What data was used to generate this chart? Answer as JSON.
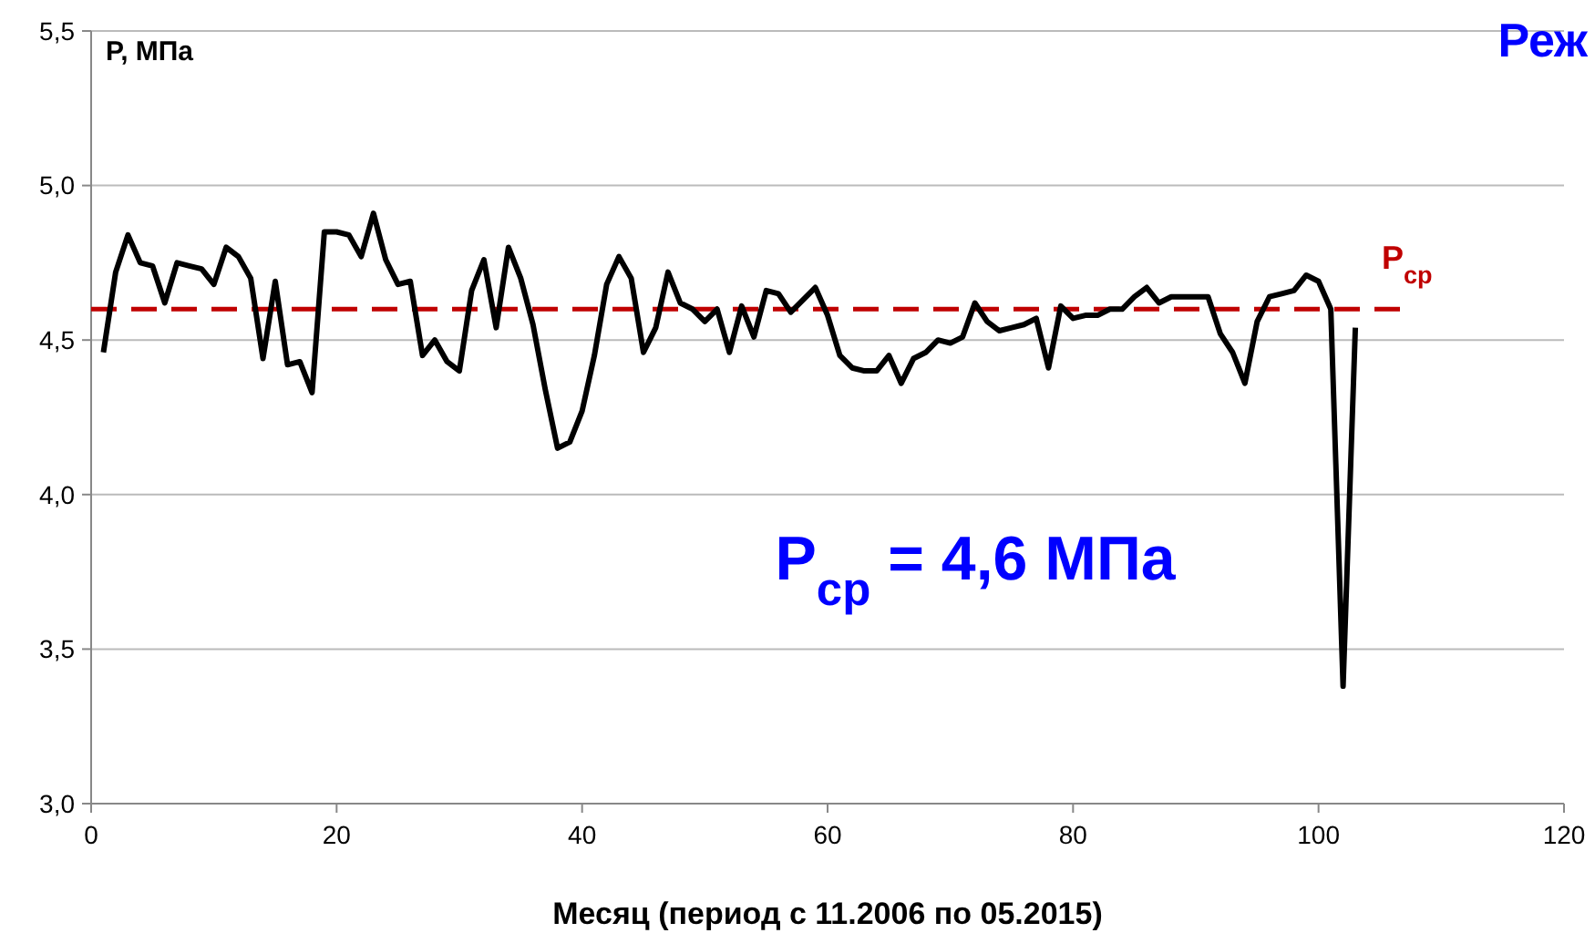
{
  "chart_data": {
    "type": "line",
    "title": "Реж",
    "xlabel": "Месяц (период с 11.2006 по 05.2015)",
    "ylabel": "P, МПа",
    "x": [
      1,
      2,
      3,
      4,
      5,
      6,
      7,
      8,
      9,
      10,
      11,
      12,
      13,
      14,
      15,
      16,
      17,
      18,
      19,
      20,
      21,
      22,
      23,
      24,
      25,
      26,
      27,
      28,
      29,
      30,
      31,
      32,
      33,
      34,
      35,
      36,
      37,
      38,
      39,
      40,
      41,
      42,
      43,
      44,
      45,
      46,
      47,
      48,
      49,
      50,
      51,
      52,
      53,
      54,
      55,
      56,
      57,
      58,
      59,
      60,
      61,
      62,
      63,
      64,
      65,
      66,
      67,
      68,
      69,
      70,
      71,
      72,
      73,
      74,
      75,
      76,
      77,
      78,
      79,
      80,
      81,
      82,
      83,
      84,
      85,
      86,
      87,
      88,
      89,
      90,
      91,
      92,
      93,
      94,
      95,
      96,
      97,
      98,
      99,
      100,
      101,
      102,
      103
    ],
    "series": [
      {
        "color": "#000000",
        "values": [
          4.46,
          4.72,
          4.84,
          4.75,
          4.74,
          4.62,
          4.75,
          4.74,
          4.73,
          4.68,
          4.8,
          4.77,
          4.7,
          4.44,
          4.69,
          4.42,
          4.43,
          4.33,
          4.85,
          4.85,
          4.84,
          4.77,
          4.91,
          4.76,
          4.68,
          4.69,
          4.45,
          4.5,
          4.43,
          4.4,
          4.66,
          4.76,
          4.54,
          4.8,
          4.7,
          4.55,
          4.34,
          4.15,
          4.17,
          4.27,
          4.45,
          4.68,
          4.77,
          4.7,
          4.46,
          4.54,
          4.72,
          4.62,
          4.6,
          4.56,
          4.6,
          4.46,
          4.61,
          4.51,
          4.66,
          4.65,
          4.59,
          4.63,
          4.67,
          4.58,
          4.45,
          4.41,
          4.4,
          4.4,
          4.45,
          4.36,
          4.44,
          4.46,
          4.5,
          4.49,
          4.51,
          4.62,
          4.56,
          4.53,
          4.54,
          4.55,
          4.57,
          4.41,
          4.61,
          4.57,
          4.58,
          4.58,
          4.6,
          4.6,
          4.64,
          4.67,
          4.62,
          4.64,
          4.64,
          4.64,
          4.64,
          4.52,
          4.46,
          4.36,
          4.56,
          4.64,
          4.65,
          4.66,
          4.71,
          4.69,
          4.6,
          3.38,
          4.54
        ]
      }
    ],
    "xlim": [
      0,
      120
    ],
    "xticks": [
      0,
      20,
      40,
      60,
      80,
      100,
      120
    ],
    "ylim": [
      3,
      5.5
    ],
    "yticks": [
      {
        "value": 3,
        "label": "3,0"
      },
      {
        "value": 3.5,
        "label": "3,5"
      },
      {
        "value": 4,
        "label": "4,0"
      },
      {
        "value": 4.5,
        "label": "4,5"
      },
      {
        "value": 5,
        "label": "5,0"
      },
      {
        "value": 5.5,
        "label": "5,5"
      }
    ],
    "grid": "y",
    "marker": "none",
    "line_style": "solid",
    "ref_lines": [
      {
        "axis": "y",
        "value": 4.6,
        "label": "P$_{ср}$",
        "color": "#c00000",
        "line_style": "dashed"
      }
    ],
    "annotations": [
      "P$_{ср}$ = 4,6 МПа"
    ]
  }
}
